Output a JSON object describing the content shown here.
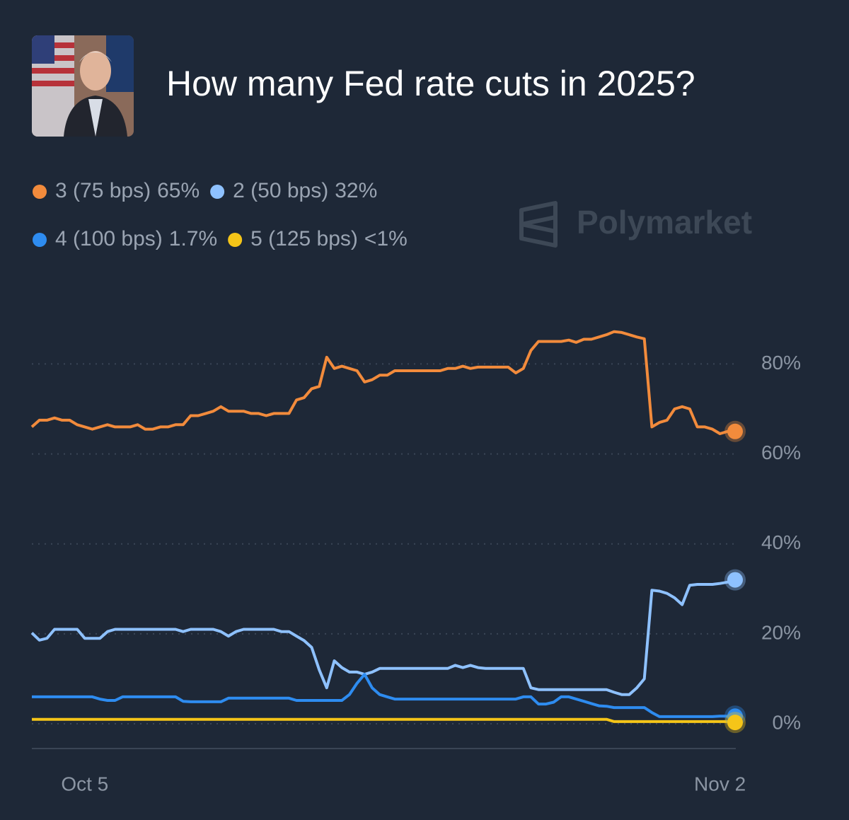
{
  "chart_data": {
    "type": "line",
    "title": "How many Fed rate cuts in 2025?",
    "watermark": "Polymarket",
    "categories": [
      null,
      null,
      null,
      null,
      null,
      null,
      null,
      "Oct 5",
      null,
      null,
      null,
      null,
      null,
      null,
      null,
      null,
      null,
      null,
      null,
      null,
      null,
      null,
      null,
      null,
      null,
      null,
      null,
      null,
      null,
      null,
      null,
      null,
      null,
      null,
      null,
      null,
      null,
      null,
      null,
      null,
      null,
      null,
      null,
      null,
      null,
      null,
      null,
      null,
      null,
      null,
      null,
      null,
      null,
      null,
      null,
      null,
      null,
      null,
      null,
      null,
      null,
      null,
      null,
      null,
      null,
      null,
      null,
      null,
      null,
      null,
      null,
      null,
      null,
      null,
      null,
      null,
      null,
      null,
      null,
      null,
      null,
      null,
      null,
      null,
      null,
      null,
      null,
      null,
      null,
      null,
      null,
      "Nov 2",
      null,
      null
    ],
    "ylim": [
      -5.5,
      98
    ],
    "yticks": [
      {
        "value": 0,
        "label": "0%"
      },
      {
        "value": 20,
        "label": "20%"
      },
      {
        "value": 40,
        "label": "40%"
      },
      {
        "value": 60,
        "label": "60%"
      },
      {
        "value": 80,
        "label": "80%"
      }
    ],
    "grid": true,
    "series": [
      {
        "name": "3 (75 bps)",
        "legend_value": "65%",
        "color": "#f28b3c",
        "values": [
          66,
          67.5,
          67.5,
          68,
          67.5,
          67.5,
          66.5,
          66,
          65.5,
          66,
          66.5,
          66,
          66,
          66,
          66.5,
          65.5,
          65.5,
          66,
          66,
          66.5,
          66.5,
          68.5,
          68.5,
          69,
          69.5,
          70.5,
          69.5,
          69.5,
          69.5,
          69,
          69,
          68.5,
          69,
          69,
          69,
          72,
          72.5,
          74.5,
          75,
          81.5,
          79,
          79.5,
          79,
          78.5,
          76,
          76.5,
          77.5,
          77.5,
          78.5,
          78.5,
          78.5,
          78.5,
          78.5,
          78.5,
          78.5,
          79,
          79,
          79.5,
          79,
          79.3,
          79.3,
          79.3,
          79.3,
          79.3,
          78,
          79,
          83,
          85,
          85,
          85,
          85,
          85.3,
          84.8,
          85.5,
          85.5,
          86,
          86.5,
          87.2,
          87,
          86.5,
          86,
          85.6,
          66,
          67,
          67.5,
          70,
          70.5,
          70,
          66,
          66,
          65.5,
          64.5,
          65,
          65
        ]
      },
      {
        "name": "2 (50 bps)",
        "legend_value": "32%",
        "color": "#8ec1ff",
        "values": [
          20.2,
          18.6,
          19,
          21,
          21,
          21,
          21,
          19,
          19,
          19,
          20.5,
          21,
          21,
          21,
          21,
          21,
          21,
          21,
          21,
          21,
          20.5,
          21,
          21,
          21,
          21,
          20.5,
          19.5,
          20.5,
          21,
          21,
          21,
          21,
          21,
          20.5,
          20.5,
          19.5,
          18.5,
          17,
          12,
          8,
          14,
          12.5,
          11.5,
          11.5,
          11,
          11.5,
          12.3,
          12.3,
          12.3,
          12.3,
          12.3,
          12.3,
          12.3,
          12.3,
          12.3,
          12.3,
          13,
          12.5,
          13,
          12.5,
          12.3,
          12.3,
          12.3,
          12.3,
          12.3,
          12.3,
          8,
          7.6,
          7.6,
          7.6,
          7.6,
          7.6,
          7.6,
          7.6,
          7.6,
          7.6,
          7.6,
          7,
          6.5,
          6.5,
          8,
          10,
          29.7,
          29.5,
          29,
          28,
          26.5,
          30.8,
          31,
          31,
          31,
          31.2,
          31.5,
          32
        ]
      },
      {
        "name": "4 (100 bps)",
        "legend_value": "1.7%",
        "color": "#2e8cf0",
        "values": [
          6,
          6,
          6,
          6,
          6,
          6,
          6,
          6,
          6,
          5.5,
          5.2,
          5.2,
          6,
          6,
          6,
          6,
          6,
          6,
          6,
          6,
          5,
          4.9,
          4.9,
          4.9,
          4.9,
          4.9,
          5.7,
          5.7,
          5.7,
          5.7,
          5.7,
          5.7,
          5.7,
          5.7,
          5.7,
          5.2,
          5.2,
          5.2,
          5.2,
          5.2,
          5.2,
          5.2,
          6.5,
          9,
          11,
          8,
          6.5,
          6,
          5.5,
          5.5,
          5.5,
          5.5,
          5.5,
          5.5,
          5.5,
          5.5,
          5.5,
          5.5,
          5.5,
          5.5,
          5.5,
          5.5,
          5.5,
          5.5,
          5.5,
          6,
          6,
          4.4,
          4.4,
          4.8,
          6,
          6,
          5.5,
          5,
          4.5,
          4,
          3.9,
          3.6,
          3.6,
          3.6,
          3.6,
          3.6,
          2.5,
          1.6,
          1.6,
          1.6,
          1.6,
          1.6,
          1.6,
          1.6,
          1.6,
          1.7,
          1.7,
          1.7
        ]
      },
      {
        "name": "5 (125 bps)",
        "legend_value": "<1%",
        "color": "#f5c518",
        "values": [
          1,
          1,
          1,
          1,
          1,
          1,
          1,
          1,
          1,
          1,
          1,
          1,
          1,
          1,
          1,
          1,
          1,
          1,
          1,
          1,
          1,
          1,
          1,
          1,
          1,
          1,
          1,
          1,
          1,
          1,
          1,
          1,
          1,
          1,
          1,
          1,
          1,
          1,
          1,
          1,
          1,
          1,
          1,
          1,
          1,
          1,
          1,
          1,
          1,
          1,
          1,
          1,
          1,
          1,
          1,
          1,
          1,
          1,
          1,
          1,
          1,
          1,
          1,
          1,
          1,
          1,
          1,
          1,
          1,
          1,
          1,
          1,
          1,
          1,
          1,
          1,
          1,
          0.5,
          0.5,
          0.5,
          0.5,
          0.5,
          0.5,
          0.5,
          0.5,
          0.5,
          0.5,
          0.5,
          0.5,
          0.5,
          0.5,
          0.5,
          0.5,
          0.3
        ]
      }
    ]
  }
}
